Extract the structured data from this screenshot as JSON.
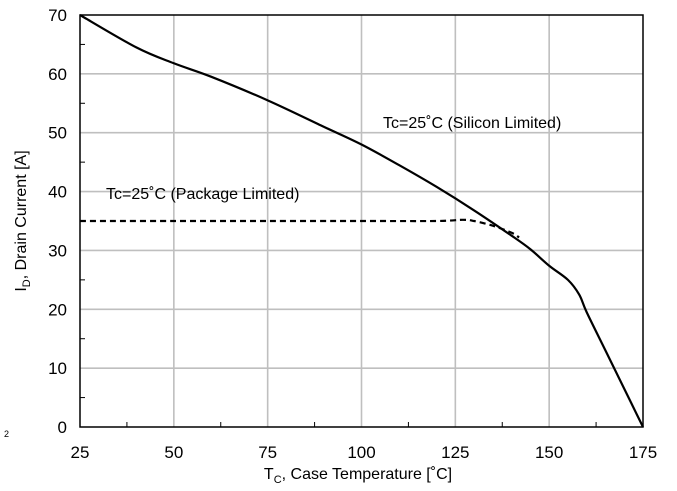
{
  "chart_data": {
    "type": "line",
    "xlabel": {
      "main": "T",
      "sub": "C",
      "rest": ", Case Temperature [˚C]"
    },
    "ylabel": {
      "main": "I",
      "sub": "D",
      "rest": ", Drain Current [A]"
    },
    "xlim": [
      25,
      175
    ],
    "ylim": [
      0,
      70
    ],
    "xticks": [
      25,
      50,
      75,
      100,
      125,
      150,
      175
    ],
    "yticks": [
      0,
      10,
      20,
      30,
      40,
      50,
      60,
      70
    ],
    "xticks_minor": [
      37.5,
      62.5,
      87.5,
      112.5,
      137.5,
      162.5
    ],
    "yticks_minor": [
      5,
      15,
      25,
      35,
      45,
      55,
      65
    ],
    "grid": true,
    "stray_label": "2",
    "series": [
      {
        "name": "Tc=25˚C (Silicon Limited)",
        "style": "solid",
        "color": "#000000",
        "x": [
          25,
          40,
          50,
          60,
          75,
          90,
          100,
          110,
          120,
          130,
          140,
          145,
          150,
          155,
          158,
          160,
          165,
          170,
          175
        ],
        "y": [
          70,
          64.5,
          61.8,
          59.5,
          55.5,
          51,
          48,
          44.5,
          40.8,
          36.8,
          32.5,
          30.2,
          27.4,
          25,
          22.5,
          19.5,
          13,
          6.5,
          0
        ]
      },
      {
        "name": "Tc=25˚C (Package Limited)",
        "style": "dashed",
        "color": "#000000",
        "x": [
          25,
          50,
          75,
          100,
          120,
          127,
          130,
          135,
          140,
          142
        ],
        "y": [
          35,
          35,
          35,
          35,
          35,
          35.2,
          35,
          34.2,
          33,
          32.2
        ]
      }
    ]
  }
}
